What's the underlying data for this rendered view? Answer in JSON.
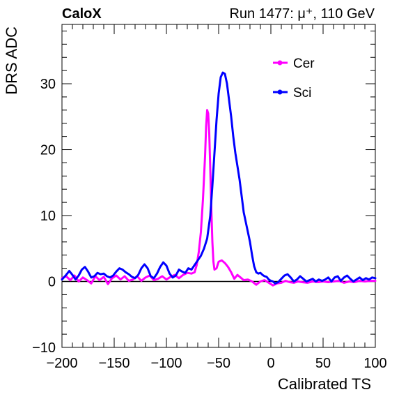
{
  "header": {
    "left_label": "CaloX",
    "right_label": "Run 1477:   μ⁺, 110 GeV"
  },
  "chart_data": {
    "type": "line",
    "xlabel": "Calibrated TS",
    "ylabel": "DRS ADC",
    "xlim": [
      -200,
      100
    ],
    "ylim": [
      -10,
      39
    ],
    "x_ticks": [
      -200,
      -150,
      -100,
      -50,
      0,
      50,
      100
    ],
    "y_ticks": [
      -10,
      0,
      10,
      20,
      30
    ],
    "x_tick_labels": [
      "−200",
      "−150",
      "−100",
      "−50",
      "0",
      "50",
      "100"
    ],
    "y_tick_labels": [
      "−10",
      "0",
      "10",
      "20",
      "30"
    ],
    "baseline": 0,
    "grid": false,
    "legend": "top-right",
    "series": [
      {
        "name": "Cer",
        "color": "#ff00ff",
        "points": [
          [
            -200,
            0.5
          ],
          [
            -196,
            0.8
          ],
          [
            -192,
            0.2
          ],
          [
            -188,
            0.9
          ],
          [
            -184,
            0.0
          ],
          [
            -180,
            0.6
          ],
          [
            -176,
            0.2
          ],
          [
            -172,
            -0.3
          ],
          [
            -168,
            0.8
          ],
          [
            -164,
            0.2
          ],
          [
            -160,
            0.7
          ],
          [
            -156,
            -0.4
          ],
          [
            -152,
            0.5
          ],
          [
            -148,
            0.9
          ],
          [
            -144,
            0.3
          ],
          [
            -140,
            0.8
          ],
          [
            -136,
            0.1
          ],
          [
            -132,
            0.3
          ],
          [
            -128,
            0.8
          ],
          [
            -124,
            0.1
          ],
          [
            -120,
            0.6
          ],
          [
            -116,
            0.9
          ],
          [
            -112,
            0.2
          ],
          [
            -108,
            0.4
          ],
          [
            -104,
            0.8
          ],
          [
            -100,
            0.3
          ],
          [
            -96,
            0.7
          ],
          [
            -92,
            1.0
          ],
          [
            -88,
            0.5
          ],
          [
            -84,
            1.0
          ],
          [
            -80,
            1.3
          ],
          [
            -76,
            1.2
          ],
          [
            -73,
            1.4
          ],
          [
            -71,
            2.5
          ],
          [
            -69,
            4.5
          ],
          [
            -67,
            7.5
          ],
          [
            -65,
            12.5
          ],
          [
            -63,
            19.0
          ],
          [
            -62,
            23.5
          ],
          [
            -61,
            26.0
          ],
          [
            -60,
            25.5
          ],
          [
            -59,
            22.5
          ],
          [
            -58,
            17.0
          ],
          [
            -57,
            11.0
          ],
          [
            -56,
            6.0
          ],
          [
            -55,
            3.0
          ],
          [
            -54,
            1.8
          ],
          [
            -52,
            2.0
          ],
          [
            -50,
            3.0
          ],
          [
            -47,
            3.2
          ],
          [
            -44,
            2.8
          ],
          [
            -41,
            2.2
          ],
          [
            -38,
            1.4
          ],
          [
            -35,
            0.4
          ],
          [
            -32,
            1.0
          ],
          [
            -29,
            0.6
          ],
          [
            -26,
            0.2
          ],
          [
            -22,
            0.3
          ],
          [
            -18,
            0.0
          ],
          [
            -14,
            -0.5
          ],
          [
            -10,
            0.0
          ],
          [
            -6,
            0.2
          ],
          [
            -2,
            -0.2
          ],
          [
            2,
            -0.6
          ],
          [
            6,
            -0.3
          ],
          [
            10,
            -0.2
          ],
          [
            14,
            0.1
          ],
          [
            18,
            -0.1
          ],
          [
            22,
            -0.2
          ],
          [
            26,
            0.0
          ],
          [
            30,
            -0.1
          ],
          [
            35,
            -0.2
          ],
          [
            40,
            0.0
          ],
          [
            45,
            -0.1
          ],
          [
            50,
            0.0
          ],
          [
            55,
            -0.1
          ],
          [
            60,
            0.0
          ],
          [
            65,
            0.1
          ],
          [
            70,
            -0.2
          ],
          [
            75,
            0.0
          ],
          [
            80,
            -0.1
          ],
          [
            85,
            0.1
          ],
          [
            90,
            0.0
          ],
          [
            95,
            0.1
          ],
          [
            100,
            0.1
          ]
        ]
      },
      {
        "name": "Sci",
        "color": "#0000ff",
        "points": [
          [
            -200,
            0.3
          ],
          [
            -196,
            1.0
          ],
          [
            -193,
            1.6
          ],
          [
            -190,
            1.0
          ],
          [
            -187,
            0.3
          ],
          [
            -184,
            0.9
          ],
          [
            -181,
            1.8
          ],
          [
            -178,
            2.2
          ],
          [
            -175,
            1.5
          ],
          [
            -172,
            0.6
          ],
          [
            -169,
            0.8
          ],
          [
            -166,
            1.3
          ],
          [
            -163,
            1.1
          ],
          [
            -160,
            1.2
          ],
          [
            -157,
            0.8
          ],
          [
            -154,
            0.6
          ],
          [
            -151,
            0.9
          ],
          [
            -148,
            1.5
          ],
          [
            -145,
            2.0
          ],
          [
            -142,
            1.8
          ],
          [
            -139,
            1.4
          ],
          [
            -136,
            1.1
          ],
          [
            -133,
            0.7
          ],
          [
            -130,
            0.5
          ],
          [
            -127,
            1.0
          ],
          [
            -124,
            2.0
          ],
          [
            -121,
            2.6
          ],
          [
            -118,
            2.0
          ],
          [
            -115,
            0.8
          ],
          [
            -112,
            0.5
          ],
          [
            -109,
            1.2
          ],
          [
            -106,
            2.2
          ],
          [
            -103,
            2.9
          ],
          [
            -100,
            2.4
          ],
          [
            -97,
            1.2
          ],
          [
            -94,
            0.6
          ],
          [
            -91,
            0.9
          ],
          [
            -88,
            1.8
          ],
          [
            -85,
            1.5
          ],
          [
            -82,
            1.3
          ],
          [
            -79,
            2.0
          ],
          [
            -76,
            1.8
          ],
          [
            -73,
            2.5
          ],
          [
            -70,
            3.2
          ],
          [
            -67,
            3.9
          ],
          [
            -64,
            5.0
          ],
          [
            -61,
            6.5
          ],
          [
            -58,
            10.0
          ],
          [
            -56,
            14.5
          ],
          [
            -54,
            19.5
          ],
          [
            -52,
            24.5
          ],
          [
            -50,
            28.5
          ],
          [
            -48,
            31.0
          ],
          [
            -46,
            31.7
          ],
          [
            -44,
            31.5
          ],
          [
            -42,
            30.0
          ],
          [
            -40,
            27.5
          ],
          [
            -38,
            25.0
          ],
          [
            -36,
            22.0
          ],
          [
            -34,
            19.5
          ],
          [
            -32,
            17.5
          ],
          [
            -30,
            15.5
          ],
          [
            -28,
            13.0
          ],
          [
            -26,
            10.5
          ],
          [
            -24,
            9.0
          ],
          [
            -22,
            7.5
          ],
          [
            -20,
            6.0
          ],
          [
            -18,
            4.0
          ],
          [
            -16,
            2.3
          ],
          [
            -14,
            1.4
          ],
          [
            -12,
            1.2
          ],
          [
            -10,
            1.3
          ],
          [
            -8,
            1.0
          ],
          [
            -6,
            0.8
          ],
          [
            -4,
            0.7
          ],
          [
            -2,
            0.3
          ],
          [
            0,
            0.1
          ],
          [
            2,
            0.0
          ],
          [
            4,
            -0.3
          ],
          [
            7,
            -0.1
          ],
          [
            10,
            0.4
          ],
          [
            13,
            0.9
          ],
          [
            16,
            1.1
          ],
          [
            19,
            0.6
          ],
          [
            22,
            0.0
          ],
          [
            25,
            0.3
          ],
          [
            28,
            0.8
          ],
          [
            31,
            0.4
          ],
          [
            34,
            0.0
          ],
          [
            37,
            0.2
          ],
          [
            40,
            0.4
          ],
          [
            43,
            0.0
          ],
          [
            46,
            0.3
          ],
          [
            49,
            0.1
          ],
          [
            52,
            0.3
          ],
          [
            55,
            0.6
          ],
          [
            58,
            0.0
          ],
          [
            61,
            0.6
          ],
          [
            64,
            0.8
          ],
          [
            67,
            0.1
          ],
          [
            70,
            0.6
          ],
          [
            73,
            0.9
          ],
          [
            76,
            0.4
          ],
          [
            79,
            0.0
          ],
          [
            82,
            0.3
          ],
          [
            85,
            0.6
          ],
          [
            88,
            0.2
          ],
          [
            91,
            0.5
          ],
          [
            94,
            0.3
          ],
          [
            97,
            0.6
          ],
          [
            100,
            0.5
          ]
        ]
      }
    ]
  }
}
